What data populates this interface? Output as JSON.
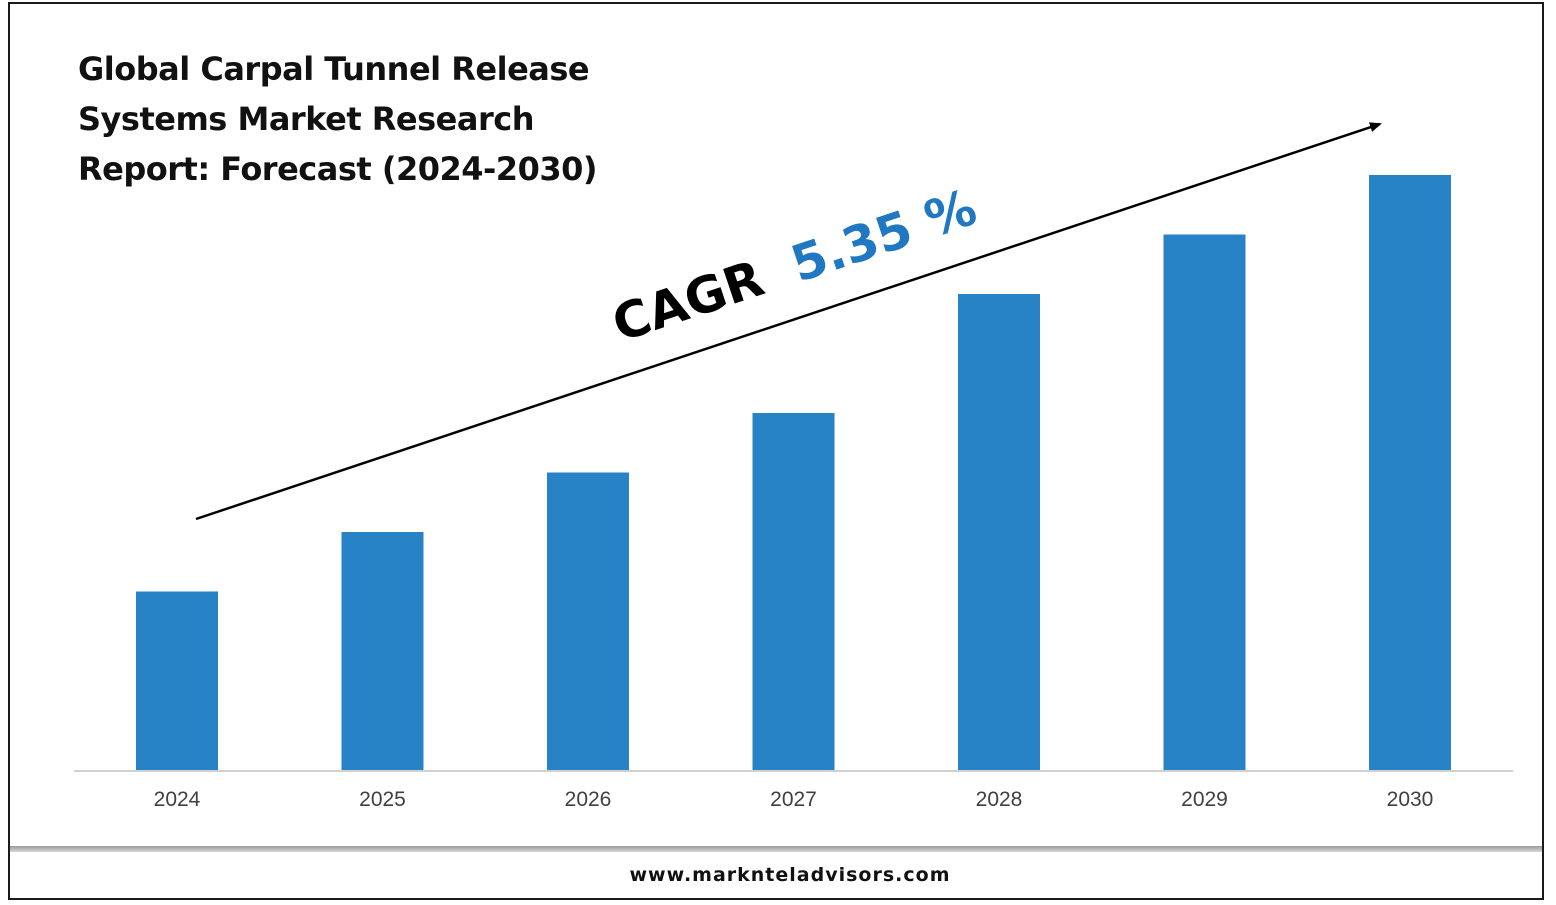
{
  "title_lines": [
    "Global Carpal Tunnel Release",
    "Systems Market Research",
    "Report: Forecast (2024-2030)"
  ],
  "cagr": {
    "label": "CAGR",
    "value": "5.35 %",
    "label_color": "#000000",
    "value_color": "#1f78c1"
  },
  "footer": {
    "url": "www.marknteladvisors.com"
  },
  "colors": {
    "bar": "#2882c6",
    "axis": "#d0d0d0",
    "tick_text": "#404040"
  },
  "chart_data": {
    "type": "bar",
    "title": "Global Carpal Tunnel Release Systems Market Research Report: Forecast (2024-2030)",
    "categories": [
      "2024",
      "2025",
      "2026",
      "2027",
      "2028",
      "2029",
      "2030"
    ],
    "values": [
      30,
      40,
      50,
      60,
      80,
      90,
      100
    ],
    "value_units": "relative (unlabeled y-axis)",
    "ylim": [
      0,
      100
    ],
    "grid": false,
    "legend": "none",
    "annotations": [
      "CAGR 5.35 %"
    ]
  }
}
